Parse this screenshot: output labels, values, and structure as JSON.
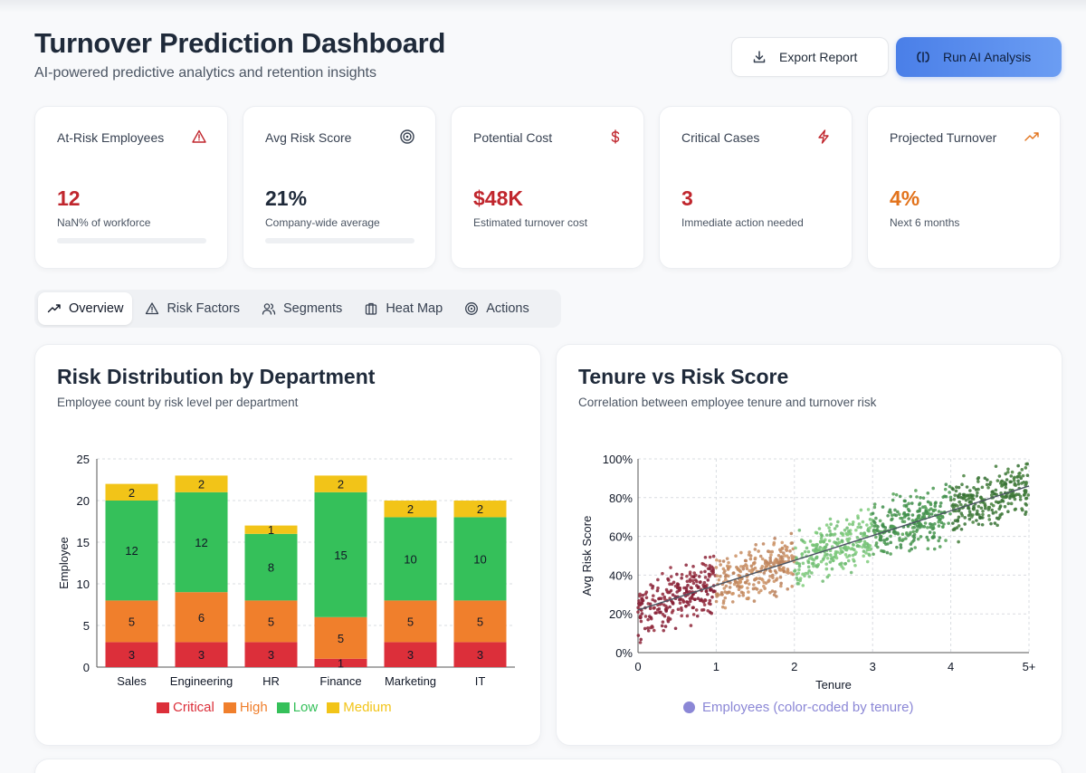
{
  "header": {
    "title": "Turnover Prediction Dashboard",
    "subtitle": "AI-powered predictive analytics and retention insights",
    "export_label": "Export Report",
    "ai_label": "Run AI Analysis"
  },
  "kpis": [
    {
      "label": "At-Risk Employees",
      "value": "12",
      "sub": "NaN% of workforce",
      "icon": "warning-triangle-icon",
      "color": "#c0262d",
      "progress": 0
    },
    {
      "label": "Avg Risk Score",
      "value": "21%",
      "sub": "Company-wide average",
      "icon": "target-icon",
      "color": "#1f2a3a",
      "progress": 0.21
    },
    {
      "label": "Potential Cost",
      "value": "$48K",
      "sub": "Estimated turnover cost",
      "icon": "dollar-icon",
      "color": "#c0262d"
    },
    {
      "label": "Critical Cases",
      "value": "3",
      "sub": "Immediate action needed",
      "icon": "lightning-icon",
      "color": "#c0262d"
    },
    {
      "label": "Projected Turnover",
      "value": "4%",
      "sub": "Next 6 months",
      "icon": "trending-up-icon",
      "color": "#e2731c"
    }
  ],
  "tabs": [
    {
      "label": "Overview",
      "icon": "trending-up-icon",
      "active": true
    },
    {
      "label": "Risk Factors",
      "icon": "warning-triangle-icon",
      "active": false
    },
    {
      "label": "Segments",
      "icon": "users-icon",
      "active": false
    },
    {
      "label": "Heat Map",
      "icon": "building-icon",
      "active": false
    },
    {
      "label": "Actions",
      "icon": "target-icon",
      "active": false
    }
  ],
  "risk_card": {
    "title": "Risk Distribution by Department",
    "subtitle": "Employee count by risk level per department"
  },
  "tenure_card": {
    "title": "Tenure vs Risk Score",
    "subtitle": "Correlation between employee tenure and turnover risk"
  },
  "chart_data": [
    {
      "type": "bar",
      "stacked": true,
      "categories": [
        "Sales",
        "Engineering",
        "HR",
        "Finance",
        "Marketing",
        "IT"
      ],
      "series": [
        {
          "name": "Critical",
          "color": "#dc2f3a",
          "values": [
            3,
            3,
            3,
            1,
            3,
            3
          ]
        },
        {
          "name": "High",
          "color": "#f07f2c",
          "values": [
            5,
            6,
            5,
            5,
            5,
            5
          ]
        },
        {
          "name": "Low",
          "color": "#35c05a",
          "values": [
            12,
            12,
            8,
            15,
            10,
            10
          ]
        },
        {
          "name": "Medium",
          "color": "#f2c418",
          "values": [
            2,
            2,
            1,
            2,
            2,
            2
          ]
        }
      ],
      "ylabel": "Employee",
      "ylim": [
        0,
        25
      ],
      "yticks": [
        0,
        5,
        10,
        15,
        20,
        25
      ],
      "grid": true,
      "legend": "bottom"
    },
    {
      "type": "scatter",
      "xlabel": "Tenure",
      "ylabel": "Avg Risk Score",
      "xticks": [
        "0",
        "1",
        "2",
        "3",
        "4",
        "5+"
      ],
      "yticks": [
        "0%",
        "20%",
        "40%",
        "60%",
        "80%",
        "100%"
      ],
      "xlim": [
        0,
        5
      ],
      "ylim": [
        0,
        100
      ],
      "series": [
        {
          "name": "Employees (color-coded by tenure)",
          "color": "#8b87d6"
        }
      ],
      "trendline": {
        "x": [
          0,
          5
        ],
        "y": [
          22,
          86
        ]
      },
      "grid": true,
      "legend": "bottom"
    }
  ]
}
